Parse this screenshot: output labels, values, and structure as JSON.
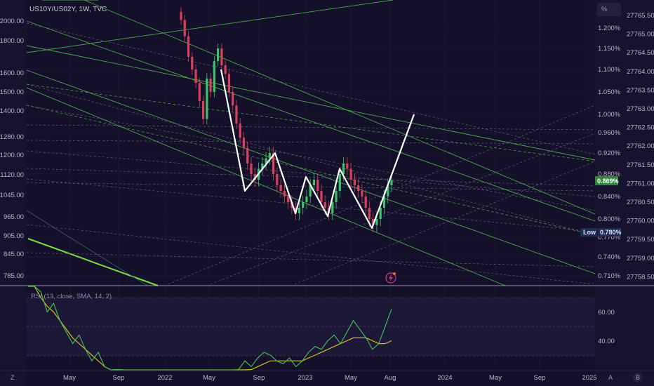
{
  "header": {
    "symbol_text": "US10Y/US02Y, 1W, TVC",
    "unit_button": "%"
  },
  "colors": {
    "background": "#14102a",
    "grid": "#221d3d",
    "candle_up": "#3cc36b",
    "candle_down": "#d8415b",
    "pattern": "#ffffff",
    "channel": "#4fa84f",
    "channel_bright": "#7cdc3c",
    "rsi_line": "#46c15a",
    "rsi_sma": "#c9c21e",
    "current_tag": "#2e8a3a",
    "low_tag": "#1f2d52"
  },
  "left_scale": [
    "2000.00",
    "1800.00",
    "1600.00",
    "1500.00",
    "1400.00",
    "1280.00",
    "1200.00",
    "1120.00",
    "1045.00",
    "965.00",
    "905.00",
    "845.00",
    "785.00"
  ],
  "right_scale_pct": [
    "1.200%",
    "1.150%",
    "1.100%",
    "1.050%",
    "1.000%",
    "0.960%",
    "0.920%",
    "0.880%",
    "0.840%",
    "0.800%",
    "0.770%",
    "0.740%",
    "0.710%"
  ],
  "far_right_scale": [
    "27765.50",
    "27765.00",
    "27764.50",
    "27764.00",
    "27763.50",
    "27763.00",
    "27762.50",
    "27762.00",
    "27761.50",
    "27761.00",
    "27760.50",
    "27760.00",
    "27759.50",
    "27759.00",
    "27758.50"
  ],
  "current_price_tag": "0.869%",
  "low_tag": {
    "label": "Low",
    "value": "0.780%"
  },
  "time_axis": [
    "May",
    "Sep",
    "2022",
    "May",
    "Sep",
    "2023",
    "May",
    "Aug",
    "2024",
    "May",
    "Sep",
    "2025"
  ],
  "rsi_panel": {
    "label": "RSI (13, close, SMA, 14, 2)",
    "scale": [
      "60.00",
      "40.00"
    ]
  },
  "corner_buttons": {
    "left": "Z",
    "right_a": "A",
    "right_b": "B"
  },
  "chart_data": {
    "type": "line",
    "title": "US10Y/US02Y, 1W, TVC",
    "price_series_name": "US10Y/US02Y",
    "zigzag_pattern_percent": [
      1.1,
      0.85,
      0.92,
      0.81,
      0.875,
      0.805,
      0.89,
      0.785,
      1.0
    ],
    "candles_weekly_close_percent": [
      1.22,
      1.18,
      1.13,
      1.1,
      1.07,
      1.03,
      0.99,
      1.08,
      1.05,
      1.12,
      1.15,
      1.11,
      1.09,
      1.05,
      1.02,
      0.98,
      0.95,
      0.93,
      0.9,
      0.88,
      0.87,
      0.89,
      0.9,
      0.91,
      0.92,
      0.88,
      0.86,
      0.85,
      0.84,
      0.83,
      0.82,
      0.81,
      0.82,
      0.83,
      0.84,
      0.86,
      0.87,
      0.85,
      0.83,
      0.82,
      0.81,
      0.83,
      0.85,
      0.88,
      0.9,
      0.89,
      0.87,
      0.86,
      0.85,
      0.84,
      0.82,
      0.8,
      0.79,
      0.8,
      0.82,
      0.84,
      0.86,
      0.869
    ],
    "current_value_percent": 0.869,
    "low_value_percent": 0.78,
    "ylim_percent": [
      0.7,
      1.23
    ],
    "rsi": {
      "name": "RSI",
      "ylim": [
        20,
        75
      ],
      "values": [
        72,
        68,
        62,
        55,
        58,
        52,
        48,
        44,
        47,
        42,
        38,
        41,
        36,
        33,
        35,
        31,
        29,
        30,
        27,
        26,
        24,
        25,
        27,
        28,
        27,
        28,
        29,
        30,
        29,
        31,
        32,
        30,
        33,
        35,
        38,
        36,
        39,
        41,
        40,
        38,
        37,
        39,
        36,
        38,
        41,
        43,
        42,
        45,
        47,
        44,
        48,
        52,
        49,
        46,
        42,
        44,
        50,
        56
      ],
      "sma_values": [
        70,
        66,
        60,
        57,
        55,
        52,
        49,
        46,
        44,
        42,
        40,
        38,
        36,
        34,
        33,
        31,
        30,
        29,
        28,
        27,
        26,
        26,
        26,
        27,
        27,
        28,
        28,
        29,
        29,
        30,
        30,
        31,
        32,
        33,
        34,
        35,
        36,
        37,
        38,
        38,
        38,
        38,
        38,
        38,
        39,
        40,
        41,
        42,
        43,
        44,
        45,
        46,
        46,
        46,
        45,
        44,
        44,
        45
      ]
    }
  }
}
